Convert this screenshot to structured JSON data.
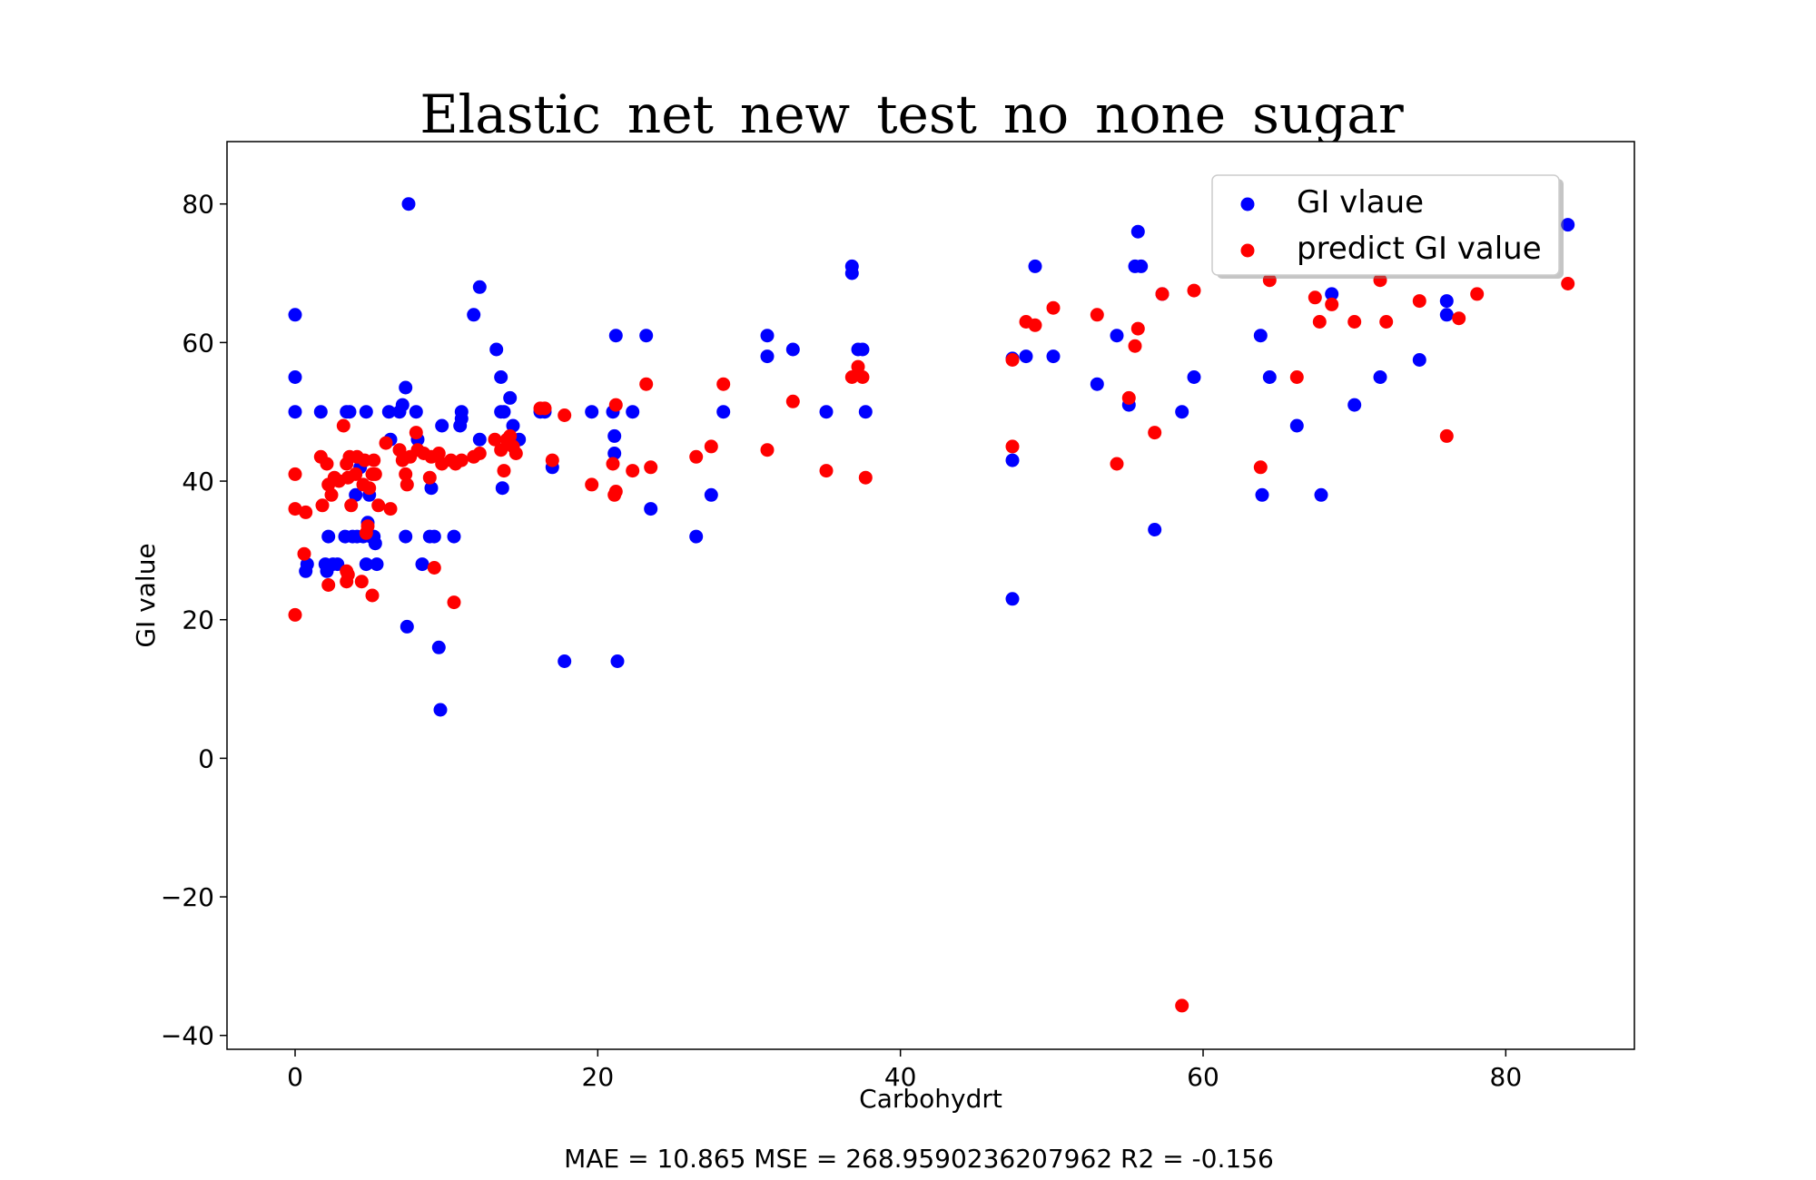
{
  "chart_data": {
    "type": "scatter",
    "title": "Elastic_net_new_test_no_none_sugar",
    "xlabel": "Carbohydrt",
    "ylabel": "GI value",
    "footer": "MAE = 10.865 MSE = 268.9590236207962 R2 = -0.156",
    "xlim": [
      -4.5,
      88.5
    ],
    "ylim": [
      -42,
      89
    ],
    "xticks": [
      0,
      20,
      40,
      60,
      80
    ],
    "xtick_labels": [
      "0",
      "20",
      "40",
      "60",
      "80"
    ],
    "yticks": [
      -40,
      -20,
      0,
      20,
      40,
      60,
      80
    ],
    "ytick_labels": [
      "−40",
      "−20",
      "0",
      "20",
      "40",
      "60",
      "80"
    ],
    "grid": false,
    "legend_position": "top-right",
    "series": [
      {
        "name": "GI vlaue",
        "color": "#0000ff",
        "points": [
          [
            0,
            64
          ],
          [
            0,
            55
          ],
          [
            0,
            50
          ],
          [
            0.7,
            27
          ],
          [
            0.8,
            28
          ],
          [
            1.7,
            50
          ],
          [
            2.0,
            28
          ],
          [
            2.1,
            27
          ],
          [
            2.2,
            32
          ],
          [
            2.5,
            28
          ],
          [
            2.8,
            28
          ],
          [
            3.3,
            32
          ],
          [
            3.4,
            50
          ],
          [
            3.6,
            50
          ],
          [
            3.8,
            32
          ],
          [
            4.0,
            38
          ],
          [
            4.1,
            32
          ],
          [
            4.3,
            42
          ],
          [
            4.5,
            32
          ],
          [
            4.7,
            28
          ],
          [
            4.7,
            50
          ],
          [
            4.8,
            34
          ],
          [
            4.9,
            38
          ],
          [
            5.0,
            32
          ],
          [
            5.2,
            32
          ],
          [
            5.3,
            31
          ],
          [
            5.4,
            28
          ],
          [
            6.2,
            50
          ],
          [
            6.3,
            46
          ],
          [
            6.9,
            50
          ],
          [
            7.1,
            51
          ],
          [
            7.3,
            53.5
          ],
          [
            7.3,
            32
          ],
          [
            7.4,
            19
          ],
          [
            7.5,
            80
          ],
          [
            8.0,
            50
          ],
          [
            8.1,
            46
          ],
          [
            8.4,
            28
          ],
          [
            8.9,
            32
          ],
          [
            9.0,
            39
          ],
          [
            9.2,
            32
          ],
          [
            9.5,
            16
          ],
          [
            9.6,
            7
          ],
          [
            9.7,
            48
          ],
          [
            10.5,
            32
          ],
          [
            10.9,
            48
          ],
          [
            11.0,
            50
          ],
          [
            11.0,
            49
          ],
          [
            11.8,
            64
          ],
          [
            12.2,
            68
          ],
          [
            12.2,
            46
          ],
          [
            13.3,
            59
          ],
          [
            13.6,
            55
          ],
          [
            13.6,
            50
          ],
          [
            13.7,
            39
          ],
          [
            13.8,
            50
          ],
          [
            14.2,
            52
          ],
          [
            14.4,
            48
          ],
          [
            14.8,
            46
          ],
          [
            16.2,
            50
          ],
          [
            16.5,
            50
          ],
          [
            17.0,
            42
          ],
          [
            17.8,
            14
          ],
          [
            19.6,
            50
          ],
          [
            21.0,
            50
          ],
          [
            21.1,
            46.5
          ],
          [
            21.1,
            44
          ],
          [
            21.2,
            61
          ],
          [
            21.3,
            14
          ],
          [
            22.3,
            50
          ],
          [
            23.2,
            61
          ],
          [
            23.5,
            36
          ],
          [
            26.5,
            32
          ],
          [
            27.5,
            38
          ],
          [
            28.3,
            50
          ],
          [
            31.2,
            61
          ],
          [
            31.2,
            58
          ],
          [
            32.9,
            59
          ],
          [
            35.1,
            50
          ],
          [
            36.8,
            71
          ],
          [
            36.8,
            70
          ],
          [
            37.2,
            59
          ],
          [
            37.5,
            59
          ],
          [
            37.7,
            50
          ],
          [
            47.4,
            43
          ],
          [
            47.4,
            23
          ],
          [
            47.4,
            57.7
          ],
          [
            48.3,
            58
          ],
          [
            48.9,
            71
          ],
          [
            50.1,
            58
          ],
          [
            53.0,
            54
          ],
          [
            54.3,
            61
          ],
          [
            55.1,
            51
          ],
          [
            55.5,
            71
          ],
          [
            55.7,
            76
          ],
          [
            55.9,
            71
          ],
          [
            56.8,
            33
          ],
          [
            57.3,
            67
          ],
          [
            58.6,
            50
          ],
          [
            59.4,
            55
          ],
          [
            63.8,
            61
          ],
          [
            63.9,
            38
          ],
          [
            64.4,
            55
          ],
          [
            66.2,
            48
          ],
          [
            67.8,
            38
          ],
          [
            68.5,
            67
          ],
          [
            70.0,
            51
          ],
          [
            71.7,
            55
          ],
          [
            74.3,
            57.5
          ],
          [
            76.1,
            66
          ],
          [
            76.1,
            64
          ],
          [
            84.1,
            77
          ]
        ]
      },
      {
        "name": "predict GI value",
        "color": "#ff0000",
        "points": [
          [
            0,
            41
          ],
          [
            0,
            36
          ],
          [
            0,
            20.7
          ],
          [
            0.6,
            29.5
          ],
          [
            0.7,
            35.5
          ],
          [
            1.7,
            43.5
          ],
          [
            1.8,
            36.5
          ],
          [
            2.1,
            42.5
          ],
          [
            2.2,
            25
          ],
          [
            2.2,
            39.5
          ],
          [
            2.4,
            38
          ],
          [
            2.6,
            40.5
          ],
          [
            2.9,
            40
          ],
          [
            3.2,
            48
          ],
          [
            3.4,
            42.5
          ],
          [
            3.4,
            27
          ],
          [
            3.4,
            25.5
          ],
          [
            3.5,
            26.5
          ],
          [
            3.5,
            40.5
          ],
          [
            3.6,
            43.5
          ],
          [
            3.7,
            36.5
          ],
          [
            4.0,
            41
          ],
          [
            4.1,
            43.5
          ],
          [
            4.4,
            25.5
          ],
          [
            4.5,
            39.5
          ],
          [
            4.6,
            43
          ],
          [
            4.7,
            32.5
          ],
          [
            4.8,
            33.5
          ],
          [
            4.9,
            39
          ],
          [
            5.1,
            23.5
          ],
          [
            5.1,
            41
          ],
          [
            5.2,
            43
          ],
          [
            5.3,
            41
          ],
          [
            5.5,
            36.5
          ],
          [
            6.0,
            45.5
          ],
          [
            6.3,
            36
          ],
          [
            6.9,
            44.5
          ],
          [
            7.1,
            43
          ],
          [
            7.3,
            41
          ],
          [
            7.4,
            39.5
          ],
          [
            7.6,
            43.5
          ],
          [
            8.0,
            47
          ],
          [
            8.1,
            44.5
          ],
          [
            8.5,
            44
          ],
          [
            8.9,
            40.5
          ],
          [
            9.0,
            43.5
          ],
          [
            9.2,
            27.5
          ],
          [
            9.5,
            44
          ],
          [
            9.7,
            42.5
          ],
          [
            10.3,
            43
          ],
          [
            10.5,
            22.5
          ],
          [
            10.6,
            42.5
          ],
          [
            11.0,
            43
          ],
          [
            11.8,
            43.5
          ],
          [
            12.2,
            44
          ],
          [
            13.2,
            46
          ],
          [
            13.6,
            44.5
          ],
          [
            13.8,
            41.5
          ],
          [
            14.0,
            46
          ],
          [
            14.2,
            46.5
          ],
          [
            14.4,
            45
          ],
          [
            14.6,
            44
          ],
          [
            16.2,
            50.5
          ],
          [
            16.5,
            50.5
          ],
          [
            17.0,
            43
          ],
          [
            17.8,
            49.5
          ],
          [
            19.6,
            39.5
          ],
          [
            21.0,
            42.5
          ],
          [
            21.1,
            38
          ],
          [
            21.2,
            38.5
          ],
          [
            21.2,
            51
          ],
          [
            22.3,
            41.5
          ],
          [
            23.2,
            54
          ],
          [
            23.5,
            42
          ],
          [
            26.5,
            43.5
          ],
          [
            27.5,
            45
          ],
          [
            28.3,
            54
          ],
          [
            31.2,
            44.5
          ],
          [
            32.9,
            51.5
          ],
          [
            35.1,
            41.5
          ],
          [
            36.8,
            55
          ],
          [
            37.2,
            56.5
          ],
          [
            37.5,
            55
          ],
          [
            37.7,
            40.5
          ],
          [
            47.4,
            45
          ],
          [
            47.4,
            57.5
          ],
          [
            48.3,
            63
          ],
          [
            48.9,
            62.5
          ],
          [
            50.1,
            65
          ],
          [
            53.0,
            64
          ],
          [
            54.3,
            42.5
          ],
          [
            55.1,
            52
          ],
          [
            55.5,
            59.5
          ],
          [
            55.7,
            62
          ],
          [
            56.8,
            47
          ],
          [
            57.3,
            67
          ],
          [
            58.6,
            -35.7
          ],
          [
            59.4,
            67.5
          ],
          [
            63.8,
            42
          ],
          [
            64.4,
            69
          ],
          [
            66.2,
            55
          ],
          [
            67.4,
            66.5
          ],
          [
            67.7,
            63
          ],
          [
            68.5,
            65.5
          ],
          [
            70.0,
            63
          ],
          [
            71.7,
            69
          ],
          [
            72.1,
            63
          ],
          [
            74.3,
            66
          ],
          [
            76.1,
            46.5
          ],
          [
            76.9,
            63.5
          ],
          [
            78.1,
            67
          ],
          [
            84.1,
            68.5
          ]
        ]
      }
    ]
  }
}
